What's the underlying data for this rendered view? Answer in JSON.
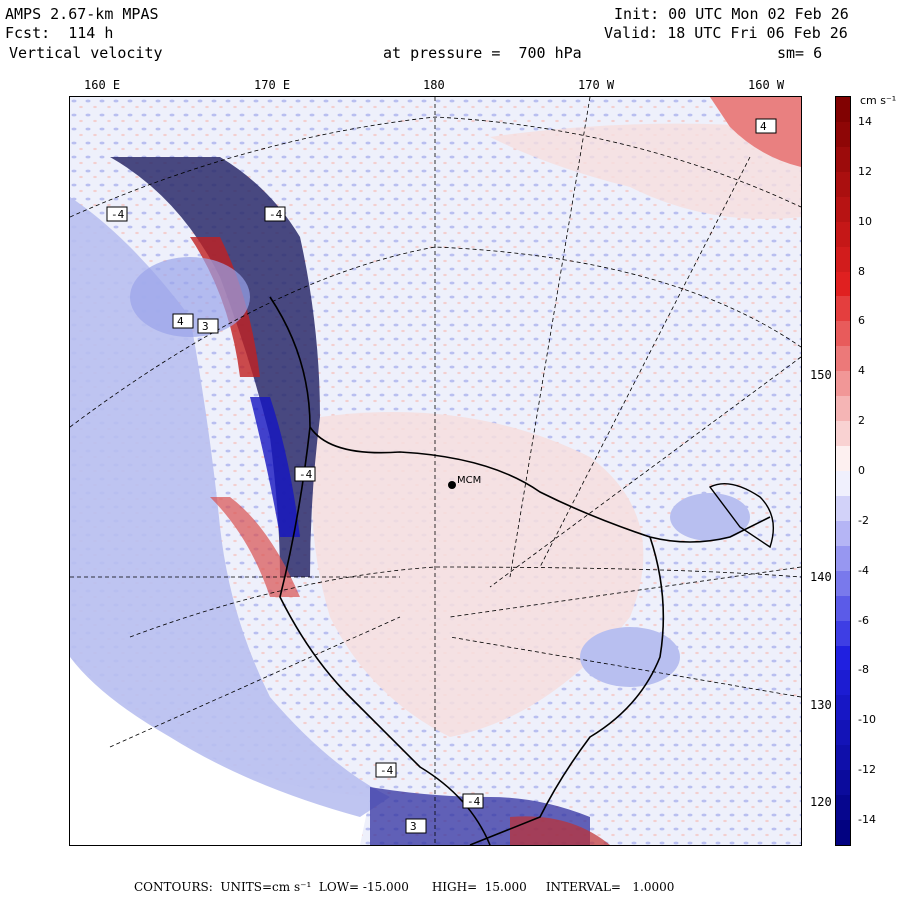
{
  "header": {
    "model": "AMPS 2.67-km MPAS",
    "forecast": "Fcst:  114 h",
    "field": "Vertical velocity",
    "init": "Init: 00 UTC Mon 02 Feb 26",
    "valid": "Valid: 18 UTC Fri 06 Feb 26",
    "level": "at pressure =  700 hPa",
    "smoothing": "sm= 6"
  },
  "map": {
    "top_longitude_labels": [
      "160 E",
      "170 E",
      "180",
      "170 W",
      "160 W"
    ],
    "right_longitude_labels": [
      "150 W",
      "140 W",
      "130 W",
      "120 W"
    ],
    "station_label": "MCM",
    "box_labels": [
      "-4",
      "4",
      "-4",
      "3",
      "4",
      "-4",
      "-4",
      "-4",
      "3"
    ],
    "colors": {
      "positive_dark": "#8b0000",
      "positive_mid": "#e03030",
      "positive_light": "#f5c8c8",
      "neutral": "#ffffff",
      "negative_light": "#c8ccf2",
      "negative_mid": "#3030e0",
      "negative_dark": "#00008b",
      "land_mask": "#ffffff"
    }
  },
  "colorbar": {
    "units_label": "cm s⁻¹",
    "labels": [
      "14",
      "12",
      "10",
      "8",
      "6",
      "4",
      "2",
      "0",
      "-2",
      "-4",
      "-6",
      "-8",
      "-10",
      "-12",
      "-14"
    ],
    "min": -15,
    "max": 15
  },
  "footer": {
    "text": "CONTOURS:  UNITS=cm s⁻¹  LOW= -15.000      HIGH=  15.000     INTERVAL=   1.0000"
  }
}
